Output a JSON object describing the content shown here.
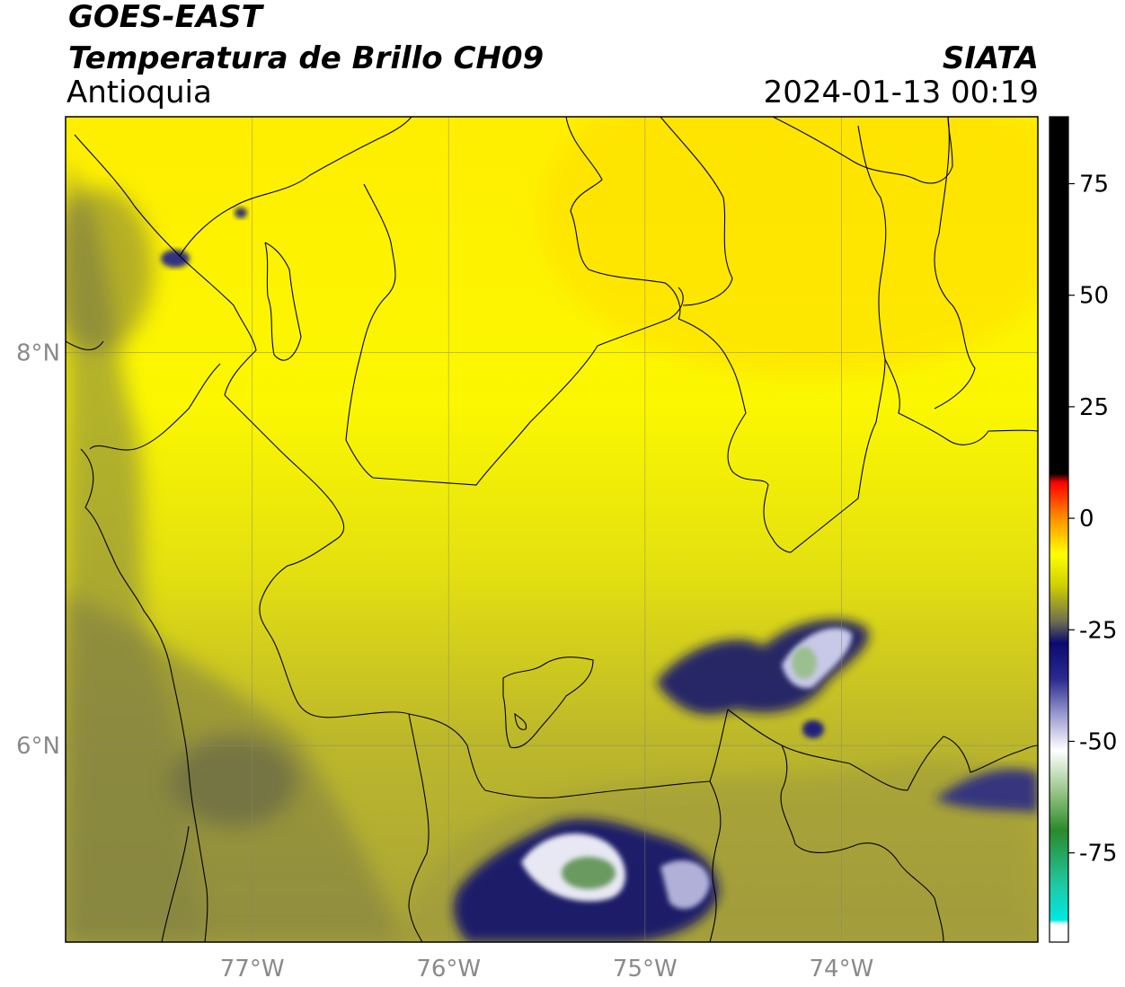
{
  "header": {
    "satellite": "GOES-EAST",
    "product": "Temperatura de Brillo CH09",
    "region": "Antioquia",
    "agency": "SIATA",
    "datetime": "2024-01-13 00:19"
  },
  "map": {
    "lon_range": [
      -77.95,
      -73.0
    ],
    "lat_range": [
      5.0,
      9.2
    ],
    "lon_ticks": [
      {
        "value": -77,
        "label": "77°W"
      },
      {
        "value": -76,
        "label": "76°W"
      },
      {
        "value": -75,
        "label": "75°W"
      },
      {
        "value": -74,
        "label": "74°W"
      }
    ],
    "lat_ticks": [
      {
        "value": 8,
        "label": "8°N"
      },
      {
        "value": 6,
        "label": "6°N"
      }
    ],
    "grid": true
  },
  "colorbar": {
    "range": [
      -95,
      90
    ],
    "ticks": [
      {
        "value": 75,
        "label": "75"
      },
      {
        "value": 50,
        "label": "50"
      },
      {
        "value": 25,
        "label": "25"
      },
      {
        "value": 0,
        "label": "0"
      },
      {
        "value": -25,
        "label": "-25"
      },
      {
        "value": -50,
        "label": "-50"
      },
      {
        "value": -75,
        "label": "-75"
      }
    ],
    "stops": [
      {
        "value": -95,
        "color": "#ffffff"
      },
      {
        "value": -91,
        "color": "#ffffff"
      },
      {
        "value": -90,
        "color": "#00e8e0"
      },
      {
        "value": -82,
        "color": "#20c8a0"
      },
      {
        "value": -70,
        "color": "#2a8a2a"
      },
      {
        "value": -62,
        "color": "#90c080"
      },
      {
        "value": -52,
        "color": "#ffffff"
      },
      {
        "value": -44,
        "color": "#9a9ad0"
      },
      {
        "value": -36,
        "color": "#2a2a90"
      },
      {
        "value": -28,
        "color": "#0a0a70"
      },
      {
        "value": -23,
        "color": "#707050"
      },
      {
        "value": -15,
        "color": "#d0d000"
      },
      {
        "value": -8,
        "color": "#ffff00"
      },
      {
        "value": 0,
        "color": "#ff9000"
      },
      {
        "value": 8,
        "color": "#ff0000"
      },
      {
        "value": 10,
        "color": "#000000"
      },
      {
        "value": 90,
        "color": "#000000"
      }
    ]
  }
}
